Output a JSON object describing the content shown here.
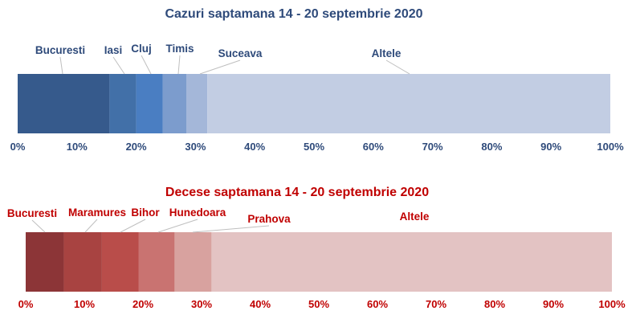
{
  "chart_data": [
    {
      "type": "bar",
      "orientation": "horizontal-stacked-100",
      "title": "Cazuri saptamana 14 - 20 septembrie 2020",
      "categories": [
        "Bucuresti",
        "Iasi",
        "Cluj",
        "Timis",
        "Suceava",
        "Altele"
      ],
      "values": [
        15.5,
        4.5,
        4.5,
        4,
        3.5,
        68
      ],
      "colors": [
        "#365a8c",
        "#4270a8",
        "#4a7ec2",
        "#7c9ccd",
        "#a4b7d9",
        "#c2cde3"
      ],
      "xlim": [
        0,
        100
      ],
      "xticks": [
        "0%",
        "10%",
        "20%",
        "30%",
        "40%",
        "50%",
        "60%",
        "70%",
        "80%",
        "90%",
        "100%"
      ],
      "text_color": "#2e4a7a"
    },
    {
      "type": "bar",
      "orientation": "horizontal-stacked-100",
      "title": "Decese saptamana 14 - 20 septembrie 2020",
      "categories": [
        "Bucuresti",
        "Maramures",
        "Bihor",
        "Hunedoara",
        "Prahova",
        "Altele"
      ],
      "values": [
        6.5,
        6.5,
        6.3,
        6.1,
        6.3,
        68.3
      ],
      "colors": [
        "#8c3537",
        "#a84341",
        "#b94d4a",
        "#c97371",
        "#d8a29f",
        "#e3c3c3"
      ],
      "xlim": [
        0,
        100
      ],
      "xticks": [
        "0%",
        "10%",
        "20%",
        "30%",
        "40%",
        "50%",
        "60%",
        "70%",
        "80%",
        "90%",
        "100%"
      ],
      "text_color": "#c00000"
    }
  ]
}
